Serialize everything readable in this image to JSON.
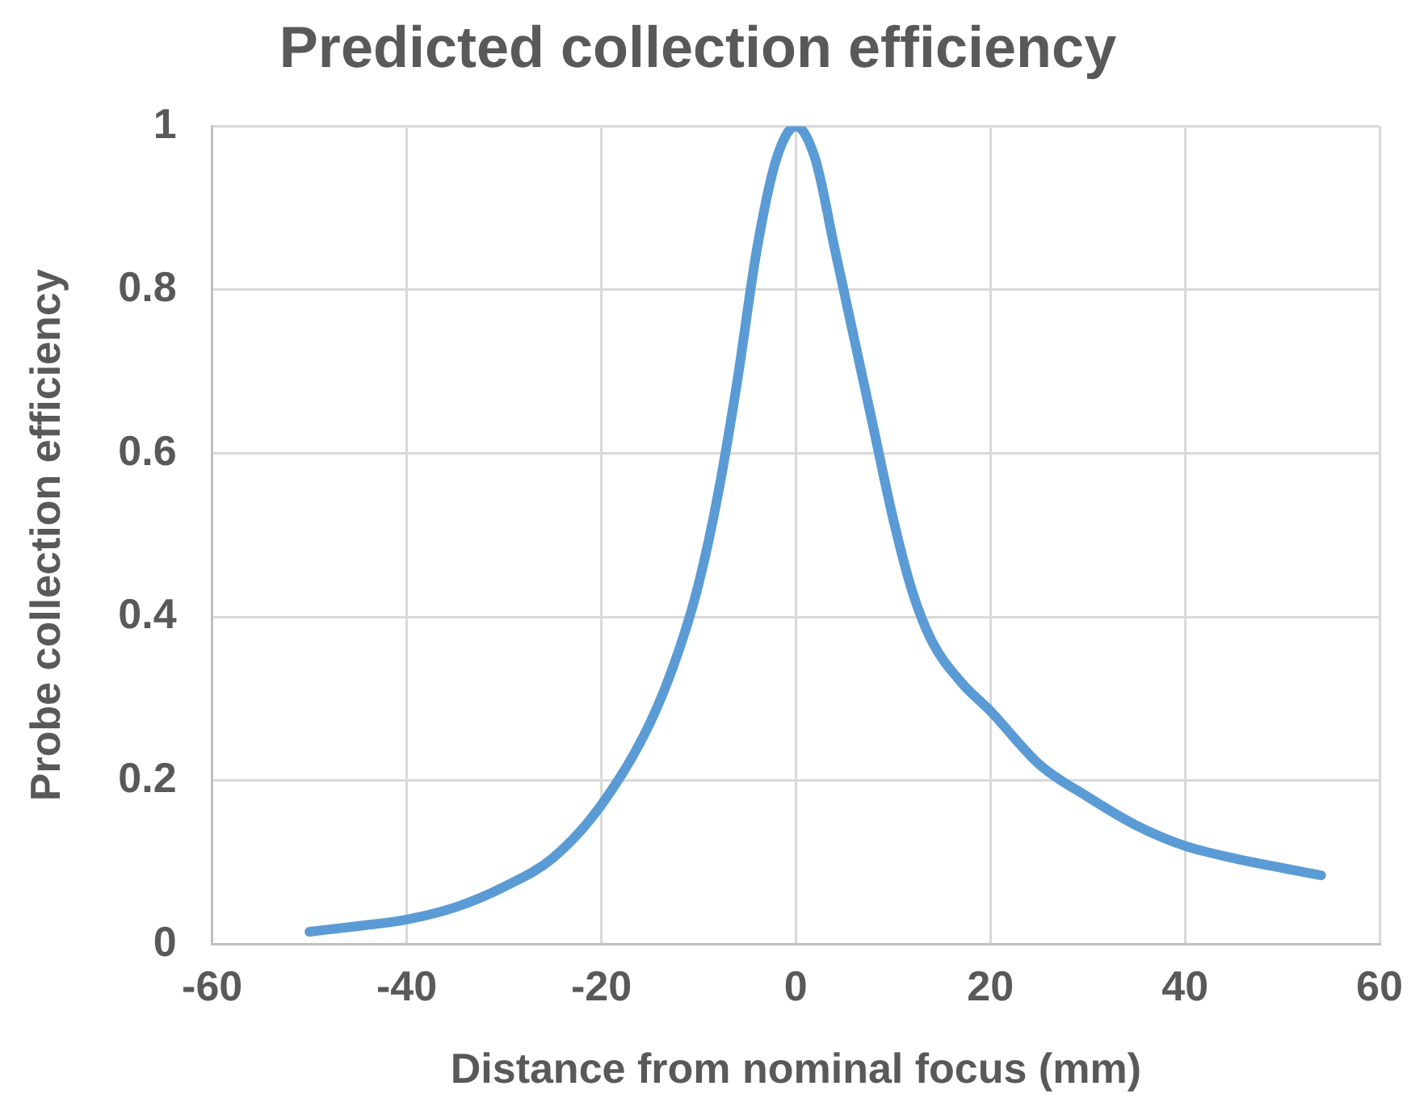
{
  "chart_data": {
    "type": "line",
    "title": "Predicted collection efficiency",
    "xlabel": "Distance from nominal focus (mm)",
    "ylabel": "Probe collection efficiency",
    "x": [
      -50,
      -45,
      -40,
      -35,
      -30,
      -25,
      -20,
      -15,
      -12,
      -10,
      -8,
      -6,
      -4,
      -2,
      0,
      2,
      4,
      6,
      8,
      10,
      12,
      14,
      17,
      20,
      25,
      30,
      35,
      40,
      45,
      50,
      54
    ],
    "series": [
      {
        "color": "#5b9bd5",
        "values": [
          0.015,
          0.022,
          0.03,
          0.045,
          0.07,
          0.105,
          0.17,
          0.27,
          0.36,
          0.44,
          0.55,
          0.69,
          0.85,
          0.96,
          1,
          0.96,
          0.85,
          0.74,
          0.63,
          0.52,
          0.43,
          0.37,
          0.32,
          0.285,
          0.22,
          0.18,
          0.145,
          0.12,
          0.105,
          0.093,
          0.084
        ]
      }
    ],
    "xlim": [
      -60,
      60
    ],
    "xticks": [
      -60,
      -40,
      -20,
      0,
      20,
      40,
      60
    ],
    "ylim": [
      0,
      1
    ],
    "yticks": [
      0,
      0.2,
      0.4,
      0.6,
      0.8,
      1
    ],
    "grid": true,
    "legend": false,
    "marker": "none",
    "line_style": "solid"
  }
}
